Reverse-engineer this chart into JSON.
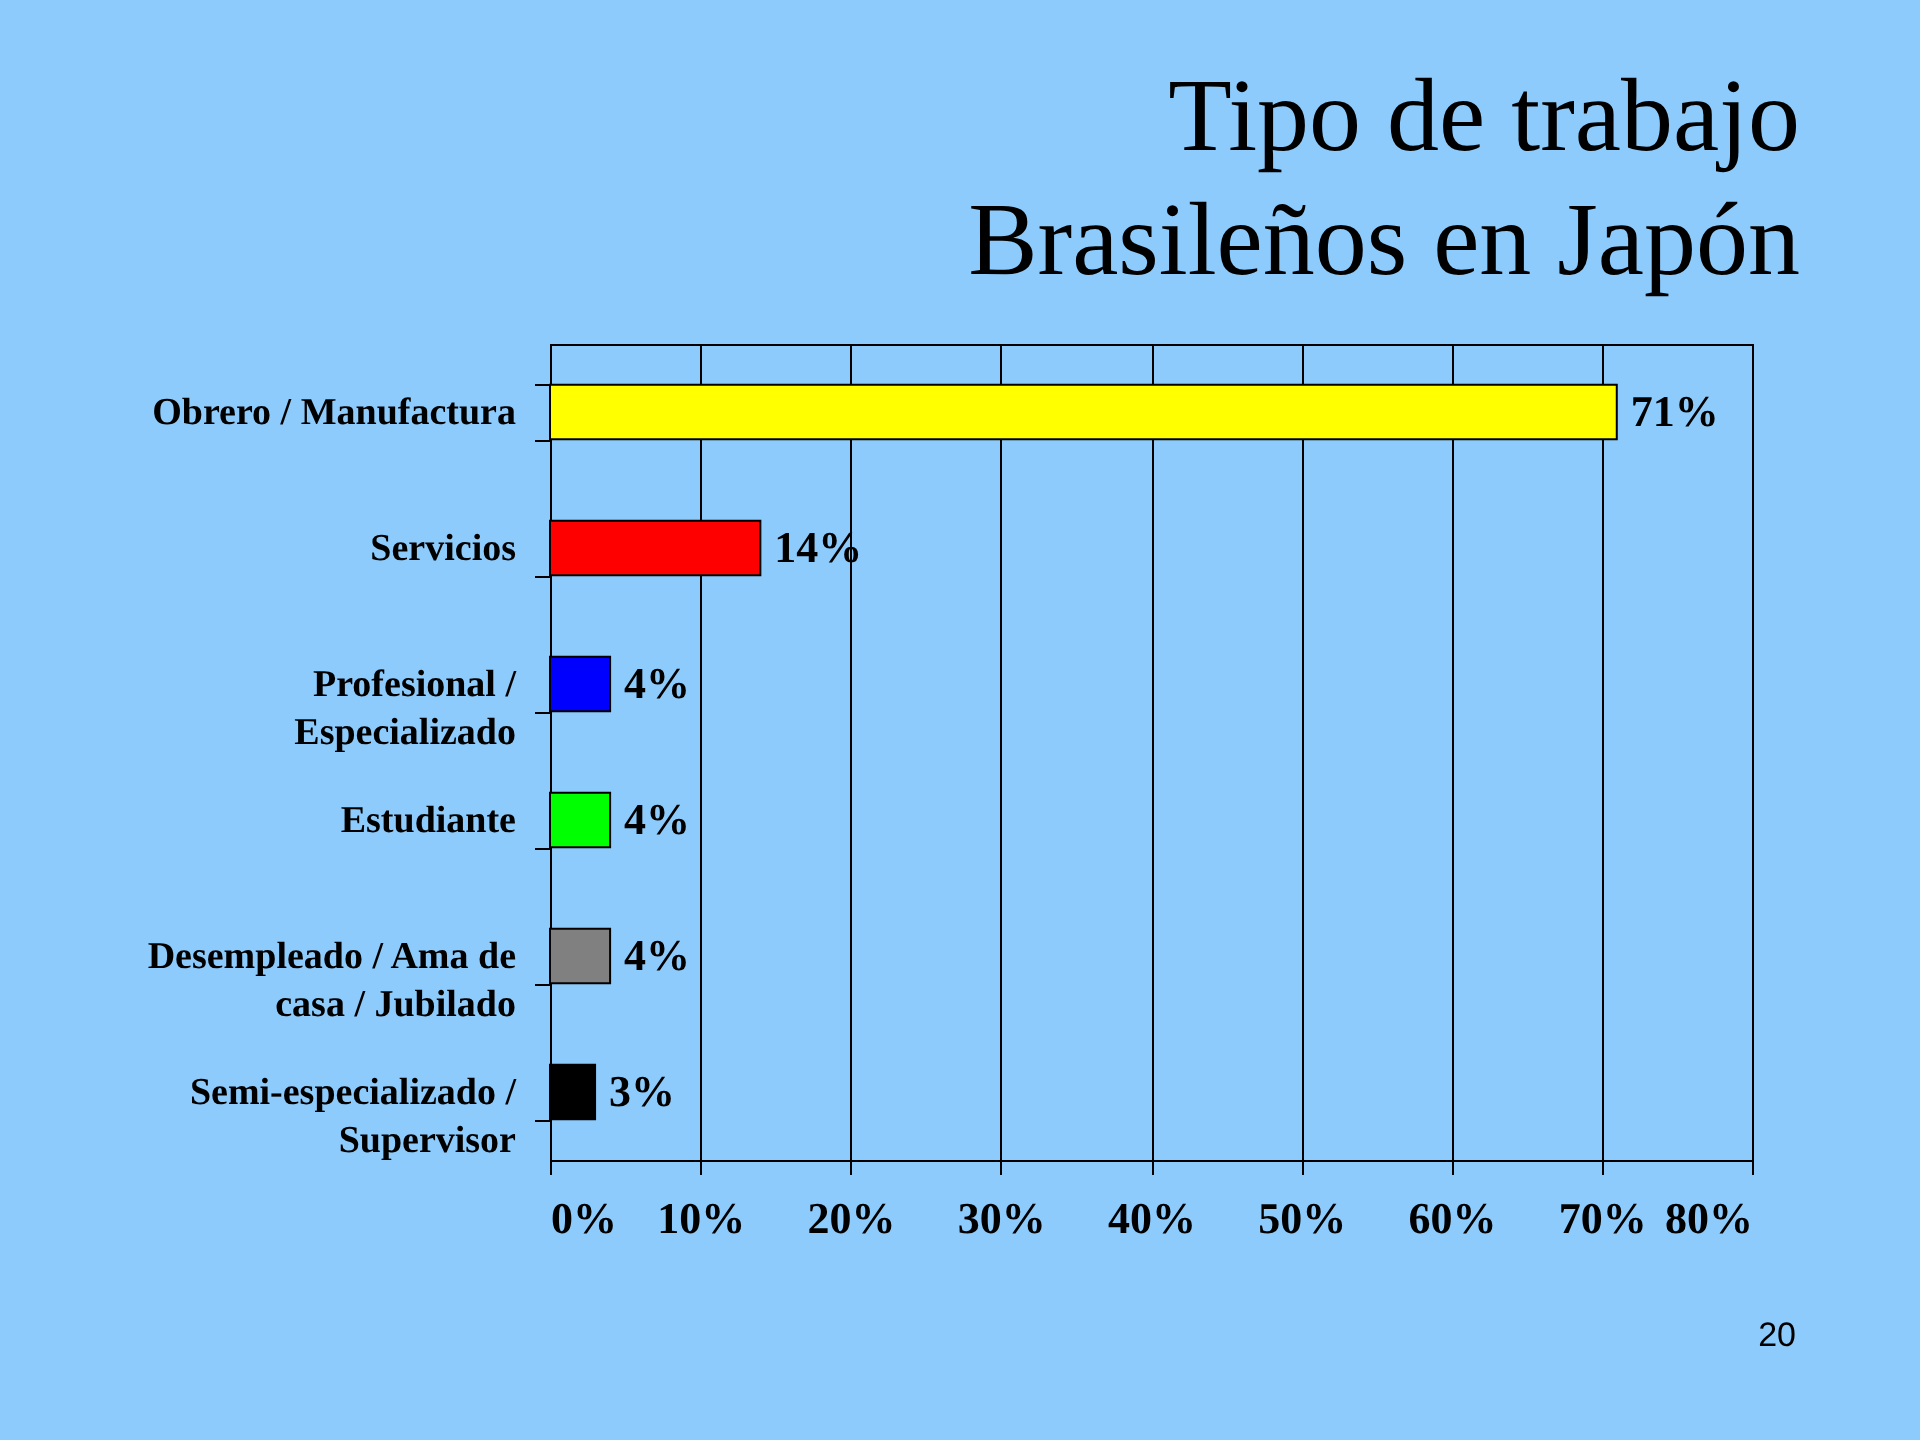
{
  "chart_data": {
    "type": "bar",
    "orientation": "horizontal",
    "title": "Tipo de trabajo\nBrasileños en Japón",
    "categories": [
      "Obrero / Manufactura",
      "Servicios",
      "Profesional / Especializado",
      "Estudiante",
      "Desempleado / Ama de casa / Jubilado",
      "Semi-especializado / Supervisor"
    ],
    "values": [
      71,
      14,
      4,
      4,
      4,
      3
    ],
    "colors": [
      "#ffff00",
      "#ff0000",
      "#0000ff",
      "#00ff00",
      "#808080",
      "#000000"
    ],
    "value_labels": [
      "71%",
      "14%",
      "4%",
      "4%",
      "4%",
      "3%"
    ],
    "xlim": [
      0,
      80
    ],
    "xticks": [
      {
        "value": 0,
        "label": "0%"
      },
      {
        "value": 10,
        "label": "10%"
      },
      {
        "value": 20,
        "label": "20%"
      },
      {
        "value": 30,
        "label": "30%"
      },
      {
        "value": 40,
        "label": "40%"
      },
      {
        "value": 50,
        "label": "50%"
      },
      {
        "value": 60,
        "label": "60%"
      },
      {
        "value": 70,
        "label": "70%"
      },
      {
        "value": 80,
        "label": "80%"
      }
    ],
    "grid": "x",
    "annotations": [
      "20"
    ]
  }
}
